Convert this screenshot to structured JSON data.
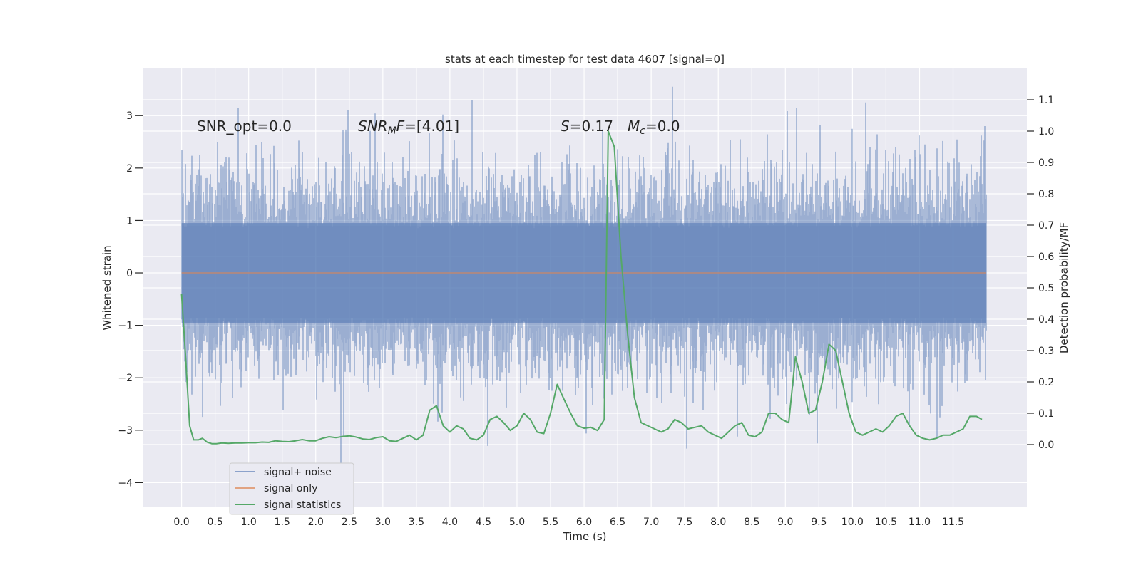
{
  "chart_data": {
    "type": "line",
    "title": "stats at each timestep for test data 4607 [signal=0]",
    "xlabel": "Time (s)",
    "ylabel_left": "Whitened strain",
    "ylabel_right": "Detection probability/MF",
    "xlim": [
      -0.58,
      12.6
    ],
    "ylim_left": [
      -4.47,
      3.9
    ],
    "ylim_right": [
      -0.2,
      1.2
    ],
    "x_ticks": [
      0.0,
      0.5,
      1.0,
      1.5,
      2.0,
      2.5,
      3.0,
      3.5,
      4.0,
      4.5,
      5.0,
      5.5,
      6.0,
      6.5,
      7.0,
      7.5,
      8.0,
      8.5,
      9.0,
      9.5,
      10.0,
      10.5,
      11.0,
      11.5
    ],
    "x_tick_labels": [
      "0.0",
      "0.5",
      "1.0",
      "1.5",
      "2.0",
      "2.5",
      "3.0",
      "3.5",
      "4.0",
      "4.5",
      "5.0",
      "5.5",
      "6.0",
      "6.5",
      "7.0",
      "7.5",
      "8.0",
      "8.5",
      "9.0",
      "9.5",
      "10.0",
      "10.5",
      "11.0",
      "11.5"
    ],
    "y_left_ticks": [
      -4,
      -3,
      -2,
      -1,
      0,
      1,
      2,
      3
    ],
    "y_left_tick_labels": [
      "−4",
      "−3",
      "−2",
      "−1",
      "0",
      "1",
      "2",
      "3"
    ],
    "y_right_ticks": [
      0.0,
      0.1,
      0.2,
      0.3,
      0.4,
      0.5,
      0.6,
      0.7,
      0.8,
      0.9,
      1.0,
      1.1
    ],
    "y_right_tick_labels": [
      "0.0",
      "0.1",
      "0.2",
      "0.3",
      "0.4",
      "0.5",
      "0.6",
      "0.7",
      "0.8",
      "0.9",
      "1.0",
      "1.1"
    ],
    "grid": true,
    "legend_position": "lower-left",
    "colors": {
      "background": "#eaeaf2",
      "grid": "#ffffff",
      "noise": "#4c72b0",
      "signal": "#dd8452",
      "statistics": "#55a868"
    },
    "annotations": {
      "snr_opt": "SNR_opt=0.0",
      "snr_mf": "=[4.01]",
      "snr_mf_sym": "SNR",
      "snr_mf_sub": "M",
      "snr_mf_post": "F",
      "s_sym": "S",
      "s_val": "=0.17",
      "mc_sym": "M",
      "mc_sub": "c",
      "mc_val": "=0.0"
    },
    "series": [
      {
        "name": "signal+ noise",
        "kind": "noise",
        "x_start": 0.0,
        "x_end": 11.99,
        "y_range": [
          -3.7,
          3.55
        ],
        "notable_extremes": [
          {
            "x": 0.27,
            "y": 2.25
          },
          {
            "x": 2.38,
            "y": -3.7
          },
          {
            "x": 2.48,
            "y": 3.1
          },
          {
            "x": 4.33,
            "y": 3.3
          },
          {
            "x": 7.32,
            "y": 3.55
          },
          {
            "x": 7.53,
            "y": -3.35
          },
          {
            "x": 9.47,
            "y": -3.25
          },
          {
            "x": 10.2,
            "y": 3.25
          },
          {
            "x": 11.97,
            "y": 2.8
          }
        ]
      },
      {
        "name": "signal only",
        "kind": "signal",
        "x": [
          0.0,
          11.99
        ],
        "y": [
          0.0,
          0.0
        ]
      },
      {
        "name": "signal statistics",
        "kind": "statistics",
        "axis": "right",
        "x": [
          0.0,
          0.06,
          0.12,
          0.18,
          0.25,
          0.31,
          0.38,
          0.45,
          0.52,
          0.6,
          0.7,
          0.8,
          0.9,
          1.0,
          1.1,
          1.2,
          1.3,
          1.4,
          1.5,
          1.6,
          1.7,
          1.8,
          1.9,
          2.0,
          2.1,
          2.2,
          2.3,
          2.4,
          2.5,
          2.6,
          2.7,
          2.8,
          2.9,
          3.0,
          3.1,
          3.2,
          3.3,
          3.4,
          3.5,
          3.6,
          3.7,
          3.8,
          3.9,
          4.0,
          4.1,
          4.2,
          4.3,
          4.4,
          4.5,
          4.6,
          4.7,
          4.8,
          4.9,
          5.0,
          5.1,
          5.2,
          5.3,
          5.4,
          5.5,
          5.6,
          5.7,
          5.8,
          5.9,
          6.0,
          6.1,
          6.2,
          6.3,
          6.36,
          6.45,
          6.55,
          6.65,
          6.75,
          6.85,
          6.95,
          7.05,
          7.15,
          7.25,
          7.35,
          7.45,
          7.55,
          7.65,
          7.75,
          7.85,
          7.95,
          8.05,
          8.15,
          8.25,
          8.35,
          8.45,
          8.55,
          8.65,
          8.75,
          8.85,
          8.95,
          9.05,
          9.15,
          9.25,
          9.35,
          9.45,
          9.55,
          9.65,
          9.75,
          9.85,
          9.95,
          10.05,
          10.15,
          10.25,
          10.35,
          10.45,
          10.55,
          10.65,
          10.75,
          10.85,
          10.95,
          11.05,
          11.15,
          11.25,
          11.35,
          11.45,
          11.55,
          11.65,
          11.75,
          11.85,
          11.93
        ],
        "y": [
          0.48,
          0.28,
          0.06,
          0.015,
          0.015,
          0.02,
          0.008,
          0.003,
          0.003,
          0.005,
          0.004,
          0.005,
          0.005,
          0.006,
          0.006,
          0.008,
          0.007,
          0.012,
          0.01,
          0.009,
          0.012,
          0.016,
          0.012,
          0.012,
          0.02,
          0.025,
          0.022,
          0.026,
          0.028,
          0.024,
          0.018,
          0.016,
          0.022,
          0.025,
          0.012,
          0.01,
          0.02,
          0.03,
          0.015,
          0.03,
          0.11,
          0.124,
          0.06,
          0.04,
          0.06,
          0.05,
          0.02,
          0.015,
          0.03,
          0.08,
          0.09,
          0.07,
          0.045,
          0.06,
          0.1,
          0.08,
          0.04,
          0.035,
          0.1,
          0.192,
          0.145,
          0.1,
          0.06,
          0.052,
          0.055,
          0.045,
          0.08,
          1.0,
          0.95,
          0.6,
          0.35,
          0.15,
          0.07,
          0.06,
          0.05,
          0.04,
          0.05,
          0.08,
          0.07,
          0.05,
          0.055,
          0.06,
          0.04,
          0.03,
          0.02,
          0.04,
          0.06,
          0.07,
          0.03,
          0.025,
          0.04,
          0.1,
          0.1,
          0.08,
          0.07,
          0.28,
          0.2,
          0.1,
          0.11,
          0.2,
          0.32,
          0.3,
          0.2,
          0.1,
          0.04,
          0.03,
          0.04,
          0.05,
          0.04,
          0.06,
          0.09,
          0.1,
          0.06,
          0.03,
          0.02,
          0.015,
          0.02,
          0.03,
          0.03,
          0.04,
          0.05,
          0.09,
          0.09,
          0.08
        ]
      }
    ]
  }
}
